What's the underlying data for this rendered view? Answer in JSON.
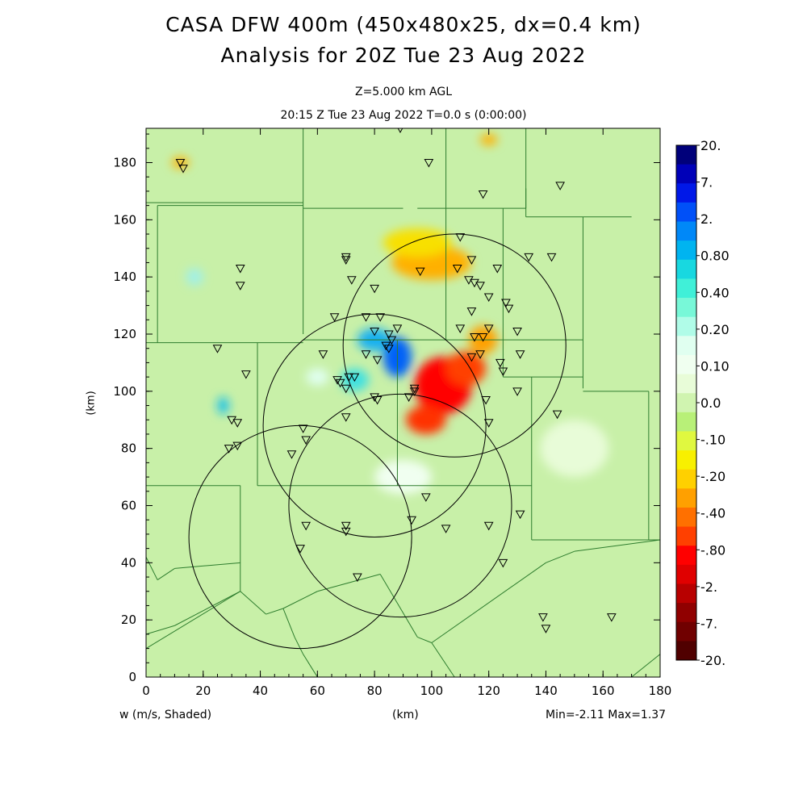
{
  "title_line1": "CASA DFW 400m (450x480x25, dx=0.4 km)",
  "title_line2": "Analysis for 20Z Tue 23 Aug 2022",
  "level_label": "Z=5.000 km AGL",
  "time_label": "20:15 Z Tue 23 Aug 2022    T=0.0 s (0:00:00)",
  "x_unit_label": "(km)",
  "y_unit_label": "(km)",
  "field_label": "w (m/s, Shaded)",
  "minmax_label": "Min=-2.11 Max=1.37",
  "colors": {
    "background_field": "#c8f0a8",
    "county_lines": "#2e7d2e",
    "range_rings": "#000000",
    "radar_marker": "#000000"
  },
  "chart_data": {
    "type": "heatmap",
    "field": "w (vertical velocity)",
    "units": "m/s",
    "xlim": [
      0,
      180
    ],
    "ylim": [
      0,
      192
    ],
    "x_ticks": [
      0,
      20,
      40,
      60,
      80,
      100,
      120,
      140,
      160,
      180
    ],
    "y_ticks": [
      0,
      20,
      40,
      60,
      80,
      100,
      120,
      140,
      160,
      180
    ],
    "min": -2.11,
    "max": 1.37,
    "colorbar": {
      "labels": [
        "20.",
        "7.",
        "2.",
        "0.80",
        "0.40",
        "0.20",
        "0.10",
        "0.0",
        "-.10",
        "-.20",
        "-.40",
        "-.80",
        "-2.",
        "-7.",
        "-20."
      ],
      "colors": [
        "#00007a",
        "#0000b8",
        "#0018e8",
        "#0050f8",
        "#0088f8",
        "#00b4f0",
        "#18d8e0",
        "#40f0d8",
        "#78f8d8",
        "#b0fce8",
        "#e0fff0",
        "#f0fff0",
        "#e8fcd8",
        "#d0f4b0",
        "#b8f078",
        "#e0f840",
        "#f8f000",
        "#ffd000",
        "#ffa000",
        "#ff7000",
        "#ff4000",
        "#ff0000",
        "#e00000",
        "#b80000",
        "#900000",
        "#700000",
        "#500000"
      ]
    },
    "range_rings": [
      {
        "center": [
          108,
          116
        ],
        "radius": 39
      },
      {
        "center": [
          80,
          88
        ],
        "radius": 39
      },
      {
        "center": [
          54,
          49
        ],
        "radius": 39
      },
      {
        "center": [
          89,
          60
        ],
        "radius": 39
      }
    ],
    "blobs": [
      {
        "x": 104,
        "y": 102,
        "rx": 10,
        "ry": 10,
        "color": "#ff0000"
      },
      {
        "x": 98,
        "y": 90,
        "rx": 7,
        "ry": 5,
        "color": "#ff3000"
      },
      {
        "x": 112,
        "y": 108,
        "rx": 7,
        "ry": 6,
        "color": "#ff4000"
      },
      {
        "x": 118,
        "y": 118,
        "rx": 5,
        "ry": 5,
        "color": "#ffa000"
      },
      {
        "x": 100,
        "y": 145,
        "rx": 14,
        "ry": 6,
        "color": "#ffb000"
      },
      {
        "x": 95,
        "y": 152,
        "rx": 12,
        "ry": 5,
        "color": "#f8e000"
      },
      {
        "x": 88,
        "y": 112,
        "rx": 5,
        "ry": 7,
        "color": "#0060f8"
      },
      {
        "x": 80,
        "y": 118,
        "rx": 6,
        "ry": 4,
        "color": "#18b0f0"
      },
      {
        "x": 73,
        "y": 104,
        "rx": 5,
        "ry": 4,
        "color": "#40e0e0"
      },
      {
        "x": 27,
        "y": 95,
        "rx": 2,
        "ry": 3,
        "color": "#18c0e8"
      },
      {
        "x": 17,
        "y": 140,
        "rx": 3,
        "ry": 3,
        "color": "#a0f0e8"
      },
      {
        "x": 12,
        "y": 180,
        "rx": 3,
        "ry": 2,
        "color": "#ffb000"
      },
      {
        "x": 120,
        "y": 188,
        "rx": 3,
        "ry": 2,
        "color": "#ffb000"
      },
      {
        "x": 60,
        "y": 105,
        "rx": 4,
        "ry": 3,
        "color": "#e0fff0"
      },
      {
        "x": 90,
        "y": 70,
        "rx": 10,
        "ry": 6,
        "color": "#f0fff0"
      },
      {
        "x": 150,
        "y": 80,
        "rx": 12,
        "ry": 10,
        "color": "#e8fcd8"
      }
    ],
    "stations": [
      [
        12,
        180
      ],
      [
        13,
        178
      ],
      [
        89,
        192
      ],
      [
        99,
        180
      ],
      [
        118,
        169
      ],
      [
        145,
        172
      ],
      [
        110,
        154
      ],
      [
        70,
        147
      ],
      [
        70,
        146
      ],
      [
        33,
        143
      ],
      [
        33,
        137
      ],
      [
        72,
        139
      ],
      [
        96,
        142
      ],
      [
        109,
        143
      ],
      [
        114,
        146
      ],
      [
        123,
        143
      ],
      [
        134,
        147
      ],
      [
        142,
        147
      ],
      [
        80,
        136
      ],
      [
        113,
        139
      ],
      [
        115,
        138
      ],
      [
        117,
        137
      ],
      [
        120,
        133
      ],
      [
        126,
        131
      ],
      [
        127,
        129
      ],
      [
        66,
        126
      ],
      [
        77,
        126
      ],
      [
        82,
        126
      ],
      [
        88,
        122
      ],
      [
        114,
        128
      ],
      [
        80,
        121
      ],
      [
        85,
        120
      ],
      [
        86,
        118
      ],
      [
        110,
        122
      ],
      [
        115,
        119
      ],
      [
        118,
        119
      ],
      [
        120,
        122
      ],
      [
        130,
        121
      ],
      [
        25,
        115
      ],
      [
        84,
        116
      ],
      [
        85,
        115
      ],
      [
        77,
        113
      ],
      [
        62,
        113
      ],
      [
        81,
        111
      ],
      [
        114,
        112
      ],
      [
        117,
        113
      ],
      [
        124,
        110
      ],
      [
        131,
        113
      ],
      [
        35,
        106
      ],
      [
        71,
        105
      ],
      [
        73,
        105
      ],
      [
        68,
        103
      ],
      [
        67,
        104
      ],
      [
        70,
        101
      ],
      [
        125,
        107
      ],
      [
        94,
        101
      ],
      [
        94,
        100
      ],
      [
        92,
        98
      ],
      [
        80,
        98
      ],
      [
        81,
        97
      ],
      [
        119,
        97
      ],
      [
        130,
        100
      ],
      [
        144,
        92
      ],
      [
        70,
        91
      ],
      [
        30,
        90
      ],
      [
        32,
        89
      ],
      [
        120,
        89
      ],
      [
        55,
        87
      ],
      [
        56,
        83
      ],
      [
        29,
        80
      ],
      [
        32,
        81
      ],
      [
        51,
        78
      ],
      [
        98,
        63
      ],
      [
        131,
        57
      ],
      [
        56,
        53
      ],
      [
        70,
        53
      ],
      [
        70,
        51
      ],
      [
        93,
        55
      ],
      [
        120,
        53
      ],
      [
        105,
        52
      ],
      [
        54,
        45
      ],
      [
        125,
        40
      ],
      [
        74,
        35
      ],
      [
        139,
        21
      ],
      [
        163,
        21
      ],
      [
        140,
        17
      ]
    ],
    "county_lines": [
      [
        [
          0,
          166
        ],
        [
          55,
          166
        ]
      ],
      [
        [
          55,
          166
        ],
        [
          55,
          192
        ]
      ],
      [
        [
          55,
          166
        ],
        [
          55,
          164
        ]
      ],
      [
        [
          4,
          165
        ],
        [
          55,
          165
        ]
      ],
      [
        [
          4,
          165
        ],
        [
          4,
          117
        ]
      ],
      [
        [
          55,
          164
        ],
        [
          55,
          164
        ],
        [
          90,
          164
        ]
      ],
      [
        [
          55,
          164
        ],
        [
          55,
          120
        ]
      ],
      [
        [
          0,
          117
        ],
        [
          39,
          117
        ]
      ],
      [
        [
          39,
          117
        ],
        [
          39,
          67
        ]
      ],
      [
        [
          39,
          117
        ],
        [
          55,
          117
        ]
      ],
      [
        [
          55,
          118
        ],
        [
          125,
          118
        ]
      ],
      [
        [
          95,
          164
        ],
        [
          133,
          164
        ]
      ],
      [
        [
          105,
          192
        ],
        [
          105,
          164
        ]
      ],
      [
        [
          133,
          164
        ],
        [
          133,
          192
        ]
      ],
      [
        [
          105,
          164
        ],
        [
          105,
          118
        ]
      ],
      [
        [
          125,
          164
        ],
        [
          125,
          118
        ]
      ],
      [
        [
          133,
          171
        ],
        [
          133,
          161
        ]
      ],
      [
        [
          133,
          161
        ],
        [
          153,
          161
        ]
      ],
      [
        [
          153,
          161
        ],
        [
          170,
          161
        ]
      ],
      [
        [
          153,
          161
        ],
        [
          153,
          101
        ]
      ],
      [
        [
          125,
          118
        ],
        [
          153,
          118
        ]
      ],
      [
        [
          125,
          118
        ],
        [
          125,
          105
        ]
      ],
      [
        [
          125,
          105
        ],
        [
          153,
          105
        ]
      ],
      [
        [
          153,
          100
        ],
        [
          176,
          100
        ]
      ],
      [
        [
          176,
          100
        ],
        [
          176,
          48
        ]
      ],
      [
        [
          176,
          48
        ],
        [
          180,
          48
        ]
      ],
      [
        [
          135,
          105
        ],
        [
          135,
          48
        ]
      ],
      [
        [
          135,
          48
        ],
        [
          176,
          48
        ]
      ],
      [
        [
          39,
          67
        ],
        [
          135,
          67
        ]
      ],
      [
        [
          88,
          118
        ],
        [
          88,
          67
        ]
      ],
      [
        [
          0,
          67
        ],
        [
          33,
          67
        ]
      ],
      [
        [
          33,
          67
        ],
        [
          33,
          40
        ]
      ],
      [
        [
          0,
          42
        ],
        [
          4,
          34
        ]
      ],
      [
        [
          4,
          34
        ],
        [
          10,
          38
        ]
      ],
      [
        [
          10,
          38
        ],
        [
          33,
          40
        ]
      ],
      [
        [
          33,
          40
        ],
        [
          33,
          30
        ]
      ],
      [
        [
          33,
          30
        ],
        [
          10,
          18
        ]
      ],
      [
        [
          10,
          18
        ],
        [
          0,
          15
        ]
      ],
      [
        [
          0,
          10
        ],
        [
          33,
          30
        ]
      ],
      [
        [
          33,
          30
        ],
        [
          42,
          22
        ]
      ],
      [
        [
          42,
          22
        ],
        [
          48,
          24
        ]
      ],
      [
        [
          48,
          24
        ],
        [
          60,
          30
        ]
      ],
      [
        [
          60,
          30
        ],
        [
          82,
          36
        ]
      ],
      [
        [
          82,
          36
        ],
        [
          95,
          14
        ]
      ],
      [
        [
          95,
          14
        ],
        [
          100,
          12
        ]
      ],
      [
        [
          100,
          12
        ],
        [
          140,
          40
        ]
      ],
      [
        [
          140,
          40
        ],
        [
          150,
          44
        ]
      ],
      [
        [
          150,
          44
        ],
        [
          180,
          48
        ]
      ],
      [
        [
          48,
          24
        ],
        [
          52,
          14
        ]
      ],
      [
        [
          52,
          14
        ],
        [
          55,
          8
        ]
      ],
      [
        [
          55,
          8
        ],
        [
          60,
          0
        ]
      ],
      [
        [
          100,
          12
        ],
        [
          108,
          0
        ]
      ],
      [
        [
          170,
          0
        ],
        [
          180,
          8
        ]
      ]
    ]
  }
}
